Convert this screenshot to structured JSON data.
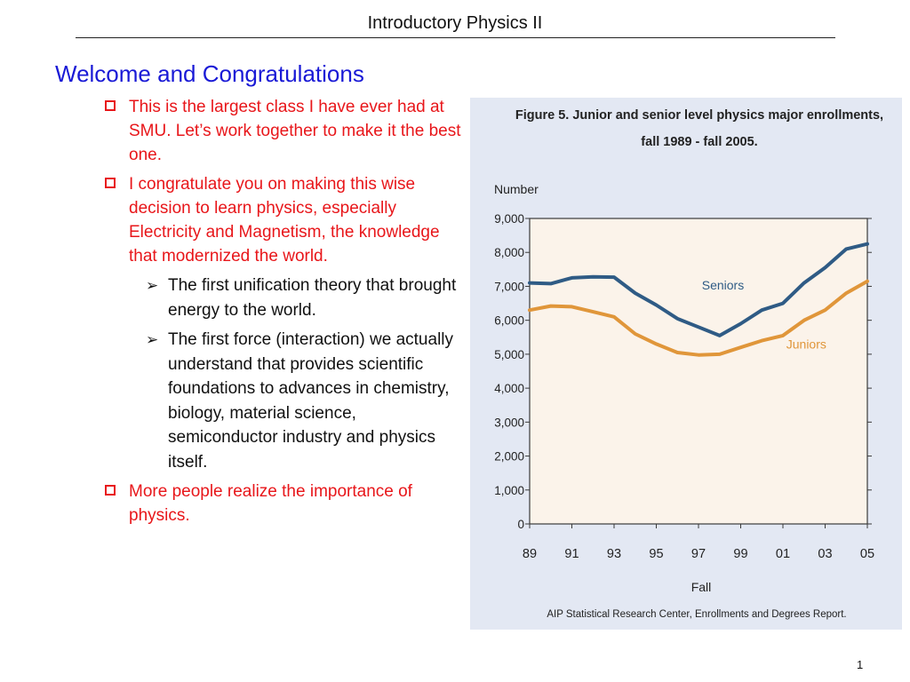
{
  "header": {
    "title": "Introductory Physics II"
  },
  "slide": {
    "title": "Welcome and Congratulations",
    "bullets": [
      "This is the largest class I have ever had at SMU. Let’s work together to make it the best one.",
      "I congratulate you on making this wise decision to learn physics, especially Electricity and Magnetism, the knowledge that modernized the world.",
      "More people realize the importance of physics."
    ],
    "sub_bullets": [
      "The first unification theory that brought energy to the world.",
      "The first force (interaction) we actually understand that provides scientific foundations to advances in chemistry, biology, material science, semiconductor industry and physics itself."
    ],
    "page_number": "1"
  },
  "chart_data": {
    "type": "line",
    "title": "Figure 5.  Junior and senior level physics major enrollments,",
    "subtitle": "fall 1989 - fall 2005.",
    "ylabel": "Number",
    "xlabel": "Fall",
    "source": "AIP Statistical Research Center, Enrollments and Degrees Report.",
    "x": [
      1989,
      1990,
      1991,
      1992,
      1993,
      1994,
      1995,
      1996,
      1997,
      1998,
      1999,
      2000,
      2001,
      2002,
      2003,
      2004,
      2005
    ],
    "x_tick_labels": [
      "89",
      "91",
      "93",
      "95",
      "97",
      "99",
      "01",
      "03",
      "05"
    ],
    "y_tick_labels": [
      "0",
      "1,000",
      "2,000",
      "3,000",
      "4,000",
      "5,000",
      "6,000",
      "7,000",
      "8,000",
      "9,000"
    ],
    "ylim": [
      0,
      9000
    ],
    "xlim": [
      1989,
      2005
    ],
    "grid": false,
    "series": [
      {
        "name": "Seniors",
        "color": "#2f5b85",
        "values": [
          7100,
          7080,
          7250,
          7280,
          7270,
          6800,
          6450,
          6050,
          5800,
          5550,
          5900,
          6300,
          6500,
          7100,
          7550,
          8100,
          8250
        ]
      },
      {
        "name": "Juniors",
        "color": "#e0963a",
        "values": [
          6300,
          6420,
          6400,
          6250,
          6100,
          5600,
          5300,
          5050,
          4980,
          5000,
          5200,
          5400,
          5550,
          6000,
          6300,
          6800,
          7150
        ]
      }
    ],
    "colors": {
      "plot_bg": "#fbf3ea",
      "axis": "#3a3a3a",
      "figure_bg": "#e3e8f3"
    }
  }
}
